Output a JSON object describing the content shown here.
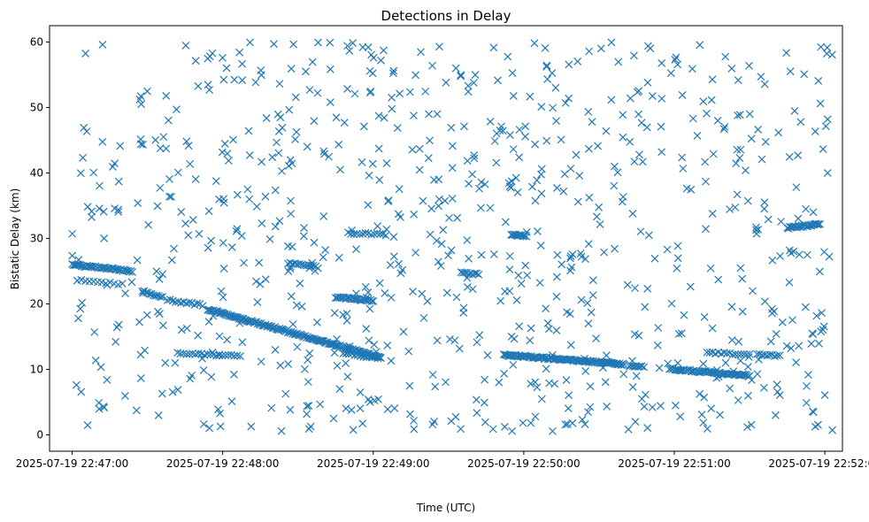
{
  "chart_data": {
    "type": "scatter",
    "title": "Detections in Delay",
    "xlabel": "Time (UTC)",
    "ylabel": "Bistatic Delay (km)",
    "marker": "x",
    "color": "#1f77b4",
    "grid": false,
    "legend": "none",
    "x_range": [
      "2025-07-19 22:46:51",
      "2025-07-19 22:52:07"
    ],
    "ylim": [
      -2.5,
      62.5
    ],
    "x_ticks": [
      "2025-07-19 22:47:00",
      "2025-07-19 22:48:00",
      "2025-07-19 22:49:00",
      "2025-07-19 22:50:00",
      "2025-07-19 22:51:00",
      "2025-07-19 22:52:00"
    ],
    "y_ticks": [
      0,
      10,
      20,
      30,
      40,
      50,
      60
    ],
    "tracks": [
      {
        "x": [
          "2025-07-19 22:47:00",
          "2025-07-19 22:47:24"
        ],
        "y": [
          26.0,
          25.0
        ],
        "n": 45
      },
      {
        "x": [
          "2025-07-19 22:47:02",
          "2025-07-19 22:47:20"
        ],
        "y": [
          23.6,
          23.0
        ],
        "n": 12
      },
      {
        "x": [
          "2025-07-19 22:47:28",
          "2025-07-19 22:47:36"
        ],
        "y": [
          22.0,
          21.0
        ],
        "n": 12
      },
      {
        "x": [
          "2025-07-19 22:47:38",
          "2025-07-19 22:47:52"
        ],
        "y": [
          20.6,
          19.8
        ],
        "n": 14
      },
      {
        "x": [
          "2025-07-19 22:47:54",
          "2025-07-19 22:49:03"
        ],
        "y": [
          19.2,
          11.8
        ],
        "n": 150
      },
      {
        "x": [
          "2025-07-19 22:47:42",
          "2025-07-19 22:48:07"
        ],
        "y": [
          12.5,
          12.0
        ],
        "n": 22
      },
      {
        "x": [
          "2025-07-19 22:48:26",
          "2025-07-19 22:48:38"
        ],
        "y": [
          26.2,
          25.6
        ],
        "n": 14
      },
      {
        "x": [
          "2025-07-19 22:48:45",
          "2025-07-19 22:49:00"
        ],
        "y": [
          21.0,
          20.5
        ],
        "n": 30
      },
      {
        "x": [
          "2025-07-19 22:48:48",
          "2025-07-19 22:49:03"
        ],
        "y": [
          12.5,
          11.6
        ],
        "n": 14
      },
      {
        "x": [
          "2025-07-19 22:48:50",
          "2025-07-19 22:49:05"
        ],
        "y": [
          30.8,
          30.6
        ],
        "n": 14
      },
      {
        "x": [
          "2025-07-19 22:49:35",
          "2025-07-19 22:49:42"
        ],
        "y": [
          24.8,
          24.5
        ],
        "n": 10
      },
      {
        "x": [
          "2025-07-19 22:49:55",
          "2025-07-19 22:50:01"
        ],
        "y": [
          30.6,
          30.4
        ],
        "n": 14
      },
      {
        "x": [
          "2025-07-19 22:49:52",
          "2025-07-19 22:50:40"
        ],
        "y": [
          12.2,
          10.8
        ],
        "n": 110
      },
      {
        "x": [
          "2025-07-19 22:50:42",
          "2025-07-19 22:50:47"
        ],
        "y": [
          10.5,
          10.4
        ],
        "n": 8
      },
      {
        "x": [
          "2025-07-19 22:50:58",
          "2025-07-19 22:51:30"
        ],
        "y": [
          10.1,
          9.0
        ],
        "n": 60
      },
      {
        "x": [
          "2025-07-19 22:51:13",
          "2025-07-19 22:51:30"
        ],
        "y": [
          12.6,
          12.2
        ],
        "n": 16
      },
      {
        "x": [
          "2025-07-19 22:51:33",
          "2025-07-19 22:51:42"
        ],
        "y": [
          12.4,
          12.0
        ],
        "n": 10
      },
      {
        "x": [
          "2025-07-19 22:51:45",
          "2025-07-19 22:51:58"
        ],
        "y": [
          31.6,
          32.2
        ],
        "n": 28
      }
    ],
    "clutter": {
      "count": 820,
      "x_range": [
        "2025-07-19 22:47:00",
        "2025-07-19 22:52:03"
      ],
      "y_range": [
        0.5,
        60
      ]
    }
  }
}
